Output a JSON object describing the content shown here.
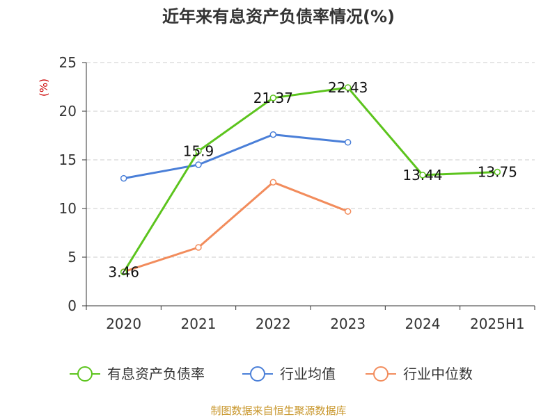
{
  "chart_data": {
    "type": "line",
    "title": "近年来有息资产负债率情况(%)",
    "ylabel": "(%)",
    "xlabel": "",
    "categories": [
      "2020",
      "2021",
      "2022",
      "2023",
      "2024",
      "2025H1"
    ],
    "ylim": [
      0,
      25
    ],
    "yticks": [
      0,
      5,
      10,
      15,
      20,
      25
    ],
    "grid": true,
    "legend_position": "bottom",
    "series": [
      {
        "name": "有息资产负债率",
        "color": "#5cc41d",
        "values": [
          3.46,
          15.9,
          21.37,
          22.43,
          13.44,
          13.75
        ],
        "labels": [
          "3.46",
          "15.9",
          "21.37",
          "22.43",
          "13.44",
          "13.75"
        ]
      },
      {
        "name": "行业均值",
        "color": "#4a7fd8",
        "values": [
          13.1,
          14.5,
          17.6,
          16.8,
          null,
          null
        ]
      },
      {
        "name": "行业中位数",
        "color": "#f28c5c",
        "values": [
          3.5,
          6.0,
          12.7,
          9.7,
          null,
          null
        ]
      }
    ]
  },
  "source": "制图数据来自恒生聚源数据库"
}
